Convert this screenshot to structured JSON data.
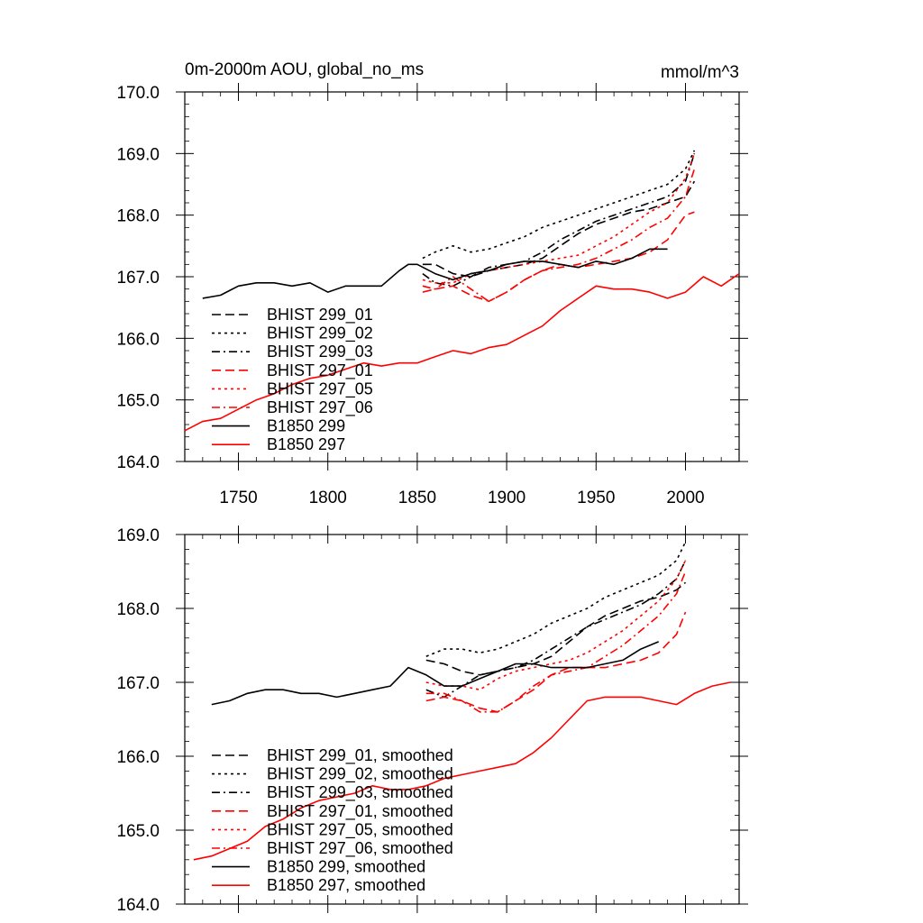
{
  "chart_data": [
    {
      "type": "line",
      "title": "0m-2000m AOU, global_no_ms",
      "units_label": "mmol/m^3",
      "xlim": [
        1720,
        2030
      ],
      "ylim": [
        164.0,
        170.0
      ],
      "x_ticks": [
        1750,
        1800,
        1850,
        1900,
        1950,
        2000
      ],
      "x_tick_labels": [
        "1750",
        "1800",
        "1850",
        "1900",
        "1950",
        "2000"
      ],
      "y_ticks": [
        164,
        165,
        166,
        167,
        168,
        169,
        170
      ],
      "y_tick_labels": [
        "164.0",
        "165.0",
        "166.0",
        "167.0",
        "168.0",
        "169.0",
        "170.0"
      ],
      "legend_position": "bottom-left",
      "series": [
        {
          "name": "BHIST 299_01",
          "color": "#000000",
          "dash": "dashed",
          "x": [
            1853,
            1860,
            1870,
            1880,
            1890,
            1900,
            1910,
            1920,
            1930,
            1940,
            1950,
            1960,
            1970,
            1980,
            1990,
            2000,
            2005
          ],
          "values": [
            167.2,
            167.2,
            167.05,
            167.0,
            167.1,
            167.15,
            167.2,
            167.3,
            167.5,
            167.7,
            167.85,
            167.95,
            168.05,
            168.1,
            168.2,
            168.3,
            168.55
          ]
        },
        {
          "name": "BHIST 299_02",
          "color": "#000000",
          "dash": "dotted",
          "x": [
            1853,
            1860,
            1870,
            1880,
            1890,
            1900,
            1910,
            1920,
            1930,
            1940,
            1950,
            1960,
            1970,
            1980,
            1990,
            2000,
            2005
          ],
          "values": [
            167.3,
            167.4,
            167.5,
            167.4,
            167.45,
            167.55,
            167.65,
            167.8,
            167.9,
            168.0,
            168.1,
            168.2,
            168.3,
            168.4,
            168.5,
            168.75,
            169.05
          ]
        },
        {
          "name": "BHIST 299_03",
          "color": "#000000",
          "dash": "dashdot",
          "x": [
            1853,
            1860,
            1870,
            1880,
            1890,
            1900,
            1910,
            1920,
            1930,
            1940,
            1950,
            1960,
            1970,
            1980,
            1990,
            2000,
            2005
          ],
          "values": [
            167.05,
            166.9,
            166.85,
            167.0,
            167.15,
            167.2,
            167.25,
            167.4,
            167.6,
            167.75,
            167.9,
            168.0,
            168.1,
            168.2,
            168.3,
            168.55,
            169.0
          ]
        },
        {
          "name": "BHIST 297_01",
          "color": "#ff0000",
          "dash": "dashed",
          "x": [
            1853,
            1860,
            1870,
            1880,
            1890,
            1900,
            1910,
            1920,
            1930,
            1940,
            1950,
            1960,
            1970,
            1980,
            1990,
            2000,
            2005
          ],
          "values": [
            166.75,
            166.8,
            166.85,
            166.7,
            166.6,
            166.75,
            166.95,
            167.1,
            167.2,
            167.15,
            167.2,
            167.25,
            167.3,
            167.4,
            167.6,
            168.0,
            168.05
          ]
        },
        {
          "name": "BHIST 297_05",
          "color": "#ff0000",
          "dash": "dotted",
          "x": [
            1853,
            1860,
            1870,
            1880,
            1890,
            1900,
            1910,
            1920,
            1930,
            1940,
            1950,
            1960,
            1970,
            1980,
            1990,
            2000,
            2005
          ],
          "values": [
            166.95,
            166.9,
            166.9,
            167.05,
            167.1,
            167.15,
            167.2,
            167.25,
            167.3,
            167.35,
            167.5,
            167.65,
            167.85,
            168.05,
            168.2,
            168.6,
            169.0
          ]
        },
        {
          "name": "BHIST 297_06",
          "color": "#ff0000",
          "dash": "dashdot",
          "x": [
            1853,
            1860,
            1870,
            1880,
            1890,
            1900,
            1910,
            1920,
            1930,
            1940,
            1950,
            1960,
            1970,
            1980,
            1990,
            2000,
            2005
          ],
          "values": [
            166.85,
            166.8,
            167.0,
            166.8,
            166.6,
            166.75,
            166.95,
            167.1,
            167.15,
            167.2,
            167.3,
            167.45,
            167.6,
            167.8,
            167.95,
            168.3,
            168.75
          ]
        },
        {
          "name": "B1850 299",
          "color": "#000000",
          "dash": "solid",
          "x": [
            1730,
            1740,
            1750,
            1760,
            1770,
            1780,
            1790,
            1800,
            1810,
            1820,
            1830,
            1840,
            1845,
            1850,
            1860,
            1870,
            1880,
            1890,
            1900,
            1910,
            1920,
            1930,
            1940,
            1950,
            1960,
            1970,
            1980,
            1990
          ],
          "values": [
            166.65,
            166.7,
            166.85,
            166.9,
            166.9,
            166.85,
            166.9,
            166.75,
            166.85,
            166.85,
            166.85,
            167.1,
            167.2,
            167.2,
            167.05,
            166.95,
            167.05,
            167.1,
            167.2,
            167.25,
            167.25,
            167.2,
            167.15,
            167.25,
            167.2,
            167.3,
            167.45,
            167.45
          ]
        },
        {
          "name": "B1850 297",
          "color": "#ff0000",
          "dash": "solid",
          "x": [
            1720,
            1730,
            1740,
            1750,
            1760,
            1770,
            1780,
            1790,
            1800,
            1810,
            1820,
            1830,
            1840,
            1850,
            1860,
            1870,
            1880,
            1890,
            1900,
            1910,
            1920,
            1930,
            1940,
            1950,
            1960,
            1970,
            1980,
            1990,
            2000,
            2010,
            2020,
            2030
          ],
          "values": [
            164.5,
            164.65,
            164.7,
            164.85,
            165.0,
            165.1,
            165.25,
            165.35,
            165.4,
            165.5,
            165.6,
            165.55,
            165.6,
            165.6,
            165.7,
            165.8,
            165.75,
            165.85,
            165.9,
            166.05,
            166.2,
            166.45,
            166.65,
            166.85,
            166.8,
            166.8,
            166.75,
            166.65,
            166.75,
            167.0,
            166.85,
            167.05
          ]
        }
      ]
    },
    {
      "type": "line",
      "xlim": [
        1720,
        2030
      ],
      "ylim": [
        164.0,
        169.0
      ],
      "x_ticks": [
        1750,
        1800,
        1850,
        1900,
        1950,
        2000
      ],
      "y_ticks": [
        164,
        165,
        166,
        167,
        168,
        169
      ],
      "y_tick_labels": [
        "164.0",
        "165.0",
        "166.0",
        "167.0",
        "168.0",
        "169.0"
      ],
      "legend_position": "bottom-left",
      "series": [
        {
          "name": "BHIST 299_01, smoothed",
          "color": "#000000",
          "dash": "dashed",
          "x": [
            1855,
            1865,
            1875,
            1885,
            1895,
            1905,
            1915,
            1925,
            1935,
            1945,
            1955,
            1965,
            1975,
            1985,
            1995,
            2000
          ],
          "values": [
            167.3,
            167.25,
            167.15,
            167.1,
            167.15,
            167.2,
            167.25,
            167.35,
            167.55,
            167.75,
            167.9,
            168.0,
            168.1,
            168.15,
            168.25,
            168.35
          ]
        },
        {
          "name": "BHIST 299_02, smoothed",
          "color": "#000000",
          "dash": "dotted",
          "x": [
            1855,
            1865,
            1875,
            1885,
            1895,
            1905,
            1915,
            1925,
            1935,
            1945,
            1955,
            1965,
            1975,
            1985,
            1995,
            2000
          ],
          "values": [
            167.35,
            167.45,
            167.45,
            167.4,
            167.45,
            167.55,
            167.65,
            167.8,
            167.9,
            168.0,
            168.15,
            168.25,
            168.35,
            168.45,
            168.65,
            168.9
          ]
        },
        {
          "name": "BHIST 299_03, smoothed",
          "color": "#000000",
          "dash": "dashdot",
          "x": [
            1855,
            1865,
            1875,
            1885,
            1895,
            1905,
            1915,
            1925,
            1935,
            1945,
            1955,
            1965,
            1975,
            1985,
            1995,
            2000
          ],
          "values": [
            166.9,
            166.8,
            166.95,
            167.1,
            167.15,
            167.2,
            167.3,
            167.45,
            167.6,
            167.75,
            167.85,
            167.95,
            168.05,
            168.2,
            168.4,
            168.65
          ]
        },
        {
          "name": "BHIST 297_01, smoothed",
          "color": "#ff0000",
          "dash": "dashed",
          "x": [
            1855,
            1865,
            1875,
            1885,
            1895,
            1905,
            1915,
            1925,
            1935,
            1945,
            1955,
            1965,
            1975,
            1985,
            1995,
            2000
          ],
          "values": [
            166.75,
            166.8,
            166.75,
            166.65,
            166.6,
            166.75,
            166.9,
            167.1,
            167.2,
            167.2,
            167.2,
            167.25,
            167.3,
            167.4,
            167.65,
            167.95
          ]
        },
        {
          "name": "BHIST 297_05, smoothed",
          "color": "#ff0000",
          "dash": "dotted",
          "x": [
            1855,
            1865,
            1875,
            1885,
            1895,
            1905,
            1915,
            1925,
            1935,
            1945,
            1955,
            1965,
            1975,
            1985,
            1995,
            2000
          ],
          "values": [
            167.0,
            166.95,
            166.95,
            166.9,
            167.05,
            167.15,
            167.2,
            167.25,
            167.3,
            167.4,
            167.55,
            167.7,
            167.9,
            168.1,
            168.4,
            168.65
          ]
        },
        {
          "name": "BHIST 297_06, smoothed",
          "color": "#ff0000",
          "dash": "dashdot",
          "x": [
            1855,
            1865,
            1875,
            1885,
            1895,
            1905,
            1915,
            1925,
            1935,
            1945,
            1955,
            1965,
            1975,
            1985,
            1995,
            2000
          ],
          "values": [
            166.85,
            166.85,
            166.75,
            166.6,
            166.6,
            166.75,
            166.95,
            167.1,
            167.15,
            167.2,
            167.35,
            167.5,
            167.7,
            167.9,
            168.2,
            168.5
          ]
        },
        {
          "name": "B1850 299, smoothed",
          "color": "#000000",
          "dash": "solid",
          "x": [
            1735,
            1745,
            1755,
            1765,
            1775,
            1785,
            1795,
            1805,
            1815,
            1825,
            1835,
            1845,
            1855,
            1865,
            1875,
            1885,
            1895,
            1905,
            1915,
            1925,
            1935,
            1945,
            1955,
            1965,
            1975,
            1985
          ],
          "values": [
            166.7,
            166.75,
            166.85,
            166.9,
            166.9,
            166.85,
            166.85,
            166.8,
            166.85,
            166.9,
            166.95,
            167.2,
            167.1,
            166.95,
            166.95,
            167.05,
            167.15,
            167.25,
            167.25,
            167.2,
            167.2,
            167.2,
            167.25,
            167.3,
            167.45,
            167.55
          ]
        },
        {
          "name": "B1850 297, smoothed",
          "color": "#ff0000",
          "dash": "solid",
          "x": [
            1725,
            1735,
            1745,
            1755,
            1765,
            1775,
            1785,
            1795,
            1805,
            1815,
            1825,
            1835,
            1845,
            1855,
            1865,
            1875,
            1885,
            1895,
            1905,
            1915,
            1925,
            1935,
            1945,
            1955,
            1965,
            1975,
            1985,
            1995,
            2005,
            2015,
            2025
          ],
          "values": [
            164.6,
            164.65,
            164.75,
            164.85,
            165.05,
            165.15,
            165.3,
            165.4,
            165.45,
            165.5,
            165.6,
            165.55,
            165.55,
            165.6,
            165.7,
            165.75,
            165.8,
            165.85,
            165.9,
            166.05,
            166.25,
            166.5,
            166.75,
            166.8,
            166.8,
            166.8,
            166.75,
            166.7,
            166.85,
            166.95,
            167.0
          ]
        }
      ]
    }
  ]
}
